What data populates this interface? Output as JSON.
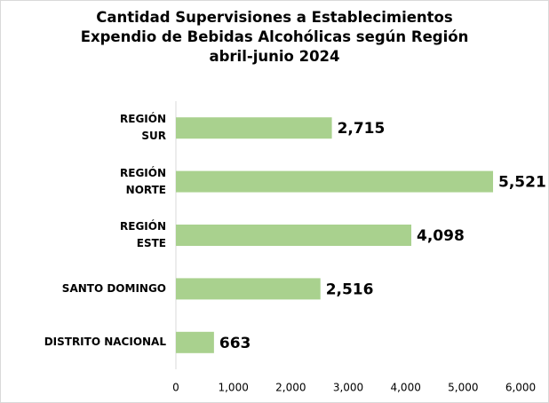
{
  "chart_data": {
    "type": "bar",
    "orientation": "horizontal",
    "title": "Cantidad Supervisiones a Establecimientos\nExpendio de Bebidas Alcohólicas según Región\nabril-junio 2024",
    "categories": [
      "REGIÓN\nSUR",
      "REGIÓN\nNORTE",
      "REGIÓN\nESTE",
      "SANTO DOMINGO",
      "DISTRITO NACIONAL"
    ],
    "values": [
      2715,
      5521,
      4098,
      2516,
      663
    ],
    "value_labels": [
      "2,715",
      "5,521",
      "4,098",
      "2,516",
      "663"
    ],
    "color": "#a9d18e",
    "xlim": [
      0,
      6000
    ],
    "xticks": [
      0,
      {
        "value": 1000,
        "label": "1,000"
      },
      {
        "value": 2000,
        "label": "2,000"
      },
      {
        "value": 3000,
        "label": "3,000"
      },
      {
        "value": 4000,
        "label": "4,000"
      },
      {
        "value": 5000,
        "label": "5,000"
      },
      {
        "value": 6000,
        "label": "6,000"
      }
    ],
    "grid": false
  }
}
